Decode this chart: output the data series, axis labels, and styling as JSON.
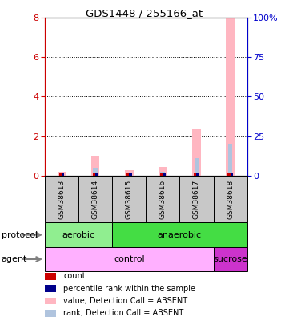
{
  "title": "GDS1448 / 255166_at",
  "samples": [
    "GSM38613",
    "GSM38614",
    "GSM38615",
    "GSM38616",
    "GSM38617",
    "GSM38618"
  ],
  "value_absent": [
    0.18,
    0.95,
    0.28,
    0.45,
    2.35,
    8.0
  ],
  "rank_absent_pct": [
    2.0,
    5.0,
    2.0,
    2.5,
    11.0,
    20.0
  ],
  "count_val": [
    0.15,
    0.12,
    0.1,
    0.1,
    0.1,
    0.1
  ],
  "percentile_val": [
    0.1,
    0.1,
    0.1,
    0.1,
    0.1,
    0.1
  ],
  "ylim_left": [
    0,
    8
  ],
  "ylim_right": [
    0,
    100
  ],
  "yticks_left": [
    0,
    2,
    4,
    6,
    8
  ],
  "yticks_right": [
    0,
    25,
    50,
    75,
    100
  ],
  "ytick_labels_right": [
    "0",
    "25",
    "50",
    "75",
    "100%"
  ],
  "color_value_absent": "#FFB6C1",
  "color_rank_absent": "#B0C4DE",
  "color_count": "#CC0000",
  "color_percentile": "#00008B",
  "sample_box_color": "#C8C8C8",
  "proto_aerobic_color": "#90EE90",
  "proto_anaerobic_color": "#44DD44",
  "agent_control_color": "#FFB0FF",
  "agent_sucrose_color": "#CC33CC",
  "background_color": "#ffffff",
  "left_axis_color": "#CC0000",
  "right_axis_color": "#0000CC",
  "legend_items": [
    [
      "#CC0000",
      "count"
    ],
    [
      "#00008B",
      "percentile rank within the sample"
    ],
    [
      "#FFB6C1",
      "value, Detection Call = ABSENT"
    ],
    [
      "#B0C4DE",
      "rank, Detection Call = ABSENT"
    ]
  ]
}
